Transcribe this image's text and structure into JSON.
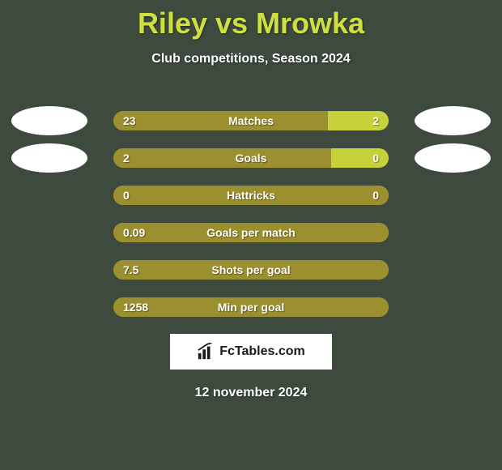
{
  "title": "Riley vs Mrowka",
  "subtitle": "Club competitions, Season 2024",
  "footer_date": "12 november 2024",
  "logo_text": "FcTables.com",
  "colors": {
    "background": "#3d4a3d",
    "title": "#cde03f",
    "text": "#ffffff",
    "bar_left": "#9b8f2f",
    "bar_right": "#c7d23a",
    "avatar": "#ffffff",
    "logo_bg": "#ffffff",
    "logo_text": "#1a1a1a"
  },
  "avatars_on_rows": [
    0,
    1
  ],
  "stats": [
    {
      "label": "Matches",
      "left_val": "23",
      "right_val": "2",
      "left_pct": 78,
      "right_pct": 22
    },
    {
      "label": "Goals",
      "left_val": "2",
      "right_val": "0",
      "left_pct": 79,
      "right_pct": 21
    },
    {
      "label": "Hattricks",
      "left_val": "0",
      "right_val": "0",
      "left_pct": 100,
      "right_pct": 0
    },
    {
      "label": "Goals per match",
      "left_val": "0.09",
      "right_val": "",
      "left_pct": 100,
      "right_pct": 0
    },
    {
      "label": "Shots per goal",
      "left_val": "7.5",
      "right_val": "",
      "left_pct": 100,
      "right_pct": 0
    },
    {
      "label": "Min per goal",
      "left_val": "1258",
      "right_val": "",
      "left_pct": 100,
      "right_pct": 0
    }
  ]
}
